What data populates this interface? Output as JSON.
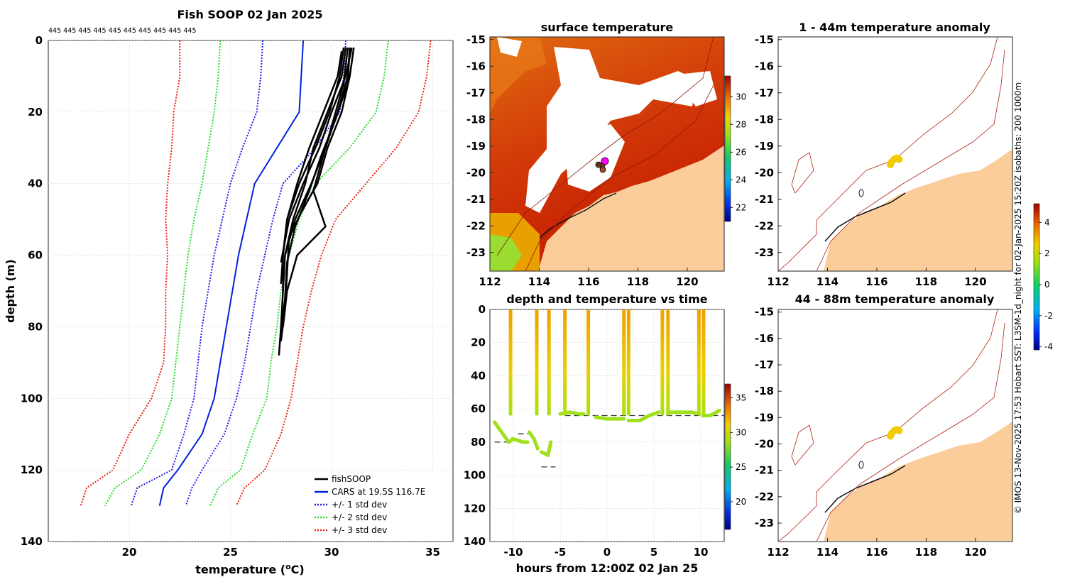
{
  "chart_data": [
    {
      "type": "line",
      "title": "Fish SOOP 02 Jan 2025",
      "top_label": "445 445 445 445 445 445 445 445 445 445",
      "xlabel": "temperature (",
      "xlabel_sup": "o",
      "xlabel_end": "C)",
      "ylabel": "depth (m)",
      "xlim": [
        16,
        36
      ],
      "ylim": [
        140,
        0
      ],
      "xticks": [
        "20",
        "25",
        "30",
        "35"
      ],
      "yticks": [
        "0",
        "20",
        "40",
        "60",
        "80",
        "100",
        "120",
        "140"
      ],
      "legend": [
        "fishSOOP",
        "CARS at 19.5S 116.7E",
        "+/- 1 std dev",
        "+/- 2 std dev",
        "+/- 3 std dev"
      ],
      "colors": {
        "fish": "#000000",
        "cars": "#0022dd",
        "std1": "#1a1aee",
        "std2": "#22dd22",
        "std3": "#ee2211"
      },
      "cars_mean": {
        "depth": [
          0,
          10,
          20,
          30,
          40,
          50,
          60,
          70,
          80,
          90,
          100,
          110,
          120,
          125,
          130
        ],
        "temp": [
          28.6,
          28.5,
          28.4,
          27.3,
          26.2,
          25.8,
          25.4,
          25.1,
          24.8,
          24.5,
          24.2,
          23.6,
          22.4,
          21.7,
          21.5
        ]
      },
      "std_devs": [
        {
          "name": "+/- 1 std dev",
          "color": "#1a1aee",
          "lower": [
            26.6,
            26.5,
            26.3,
            25.6,
            25.0,
            24.6,
            24.2,
            23.9,
            23.6,
            23.4,
            23.2,
            22.7,
            22.1,
            20.4,
            20.1
          ],
          "upper": [
            30.7,
            30.6,
            30.4,
            29.2,
            27.6,
            27.1,
            26.7,
            26.3,
            26.0,
            25.7,
            25.3,
            24.7,
            23.6,
            23.1,
            22.8
          ]
        },
        {
          "name": "+/- 2 std dev",
          "color": "#22dd22",
          "lower": [
            24.5,
            24.4,
            24.2,
            23.9,
            23.6,
            23.2,
            22.9,
            22.7,
            22.5,
            22.3,
            22.1,
            21.5,
            20.6,
            19.3,
            18.8
          ]
        },
        {
          "name": "+/- 3 std dev",
          "color": "#ee2211",
          "lower": [
            22.5,
            22.5,
            22.2,
            22.1,
            21.9,
            21.8,
            21.9,
            21.8,
            21.8,
            21.7,
            21.1,
            20.0,
            19.2,
            17.9,
            17.6
          ]
        }
      ],
      "std_upper_extra": {
        "std2": [
          32.8,
          32.6,
          32.2,
          30.9,
          29.2,
          28.4,
          27.9,
          27.5,
          27.3,
          27.0,
          26.8,
          26.1,
          25.5,
          24.4,
          24.0
        ],
        "std3": [
          34.9,
          34.7,
          34.3,
          33.2,
          31.7,
          30.2,
          29.5,
          29.0,
          28.6,
          28.3,
          28.0,
          27.5,
          26.7,
          25.7,
          25.3
        ]
      },
      "fish_profiles": [
        {
          "depth": [
            2,
            10,
            20,
            30,
            40,
            50,
            60,
            70,
            80,
            88
          ],
          "temp": [
            30.9,
            30.8,
            30.3,
            29.7,
            29.0,
            28.2,
            27.7,
            27.6,
            27.5,
            27.4
          ]
        },
        {
          "depth": [
            2,
            10,
            20,
            30,
            40,
            50,
            62
          ],
          "temp": [
            31.0,
            30.7,
            30.0,
            29.4,
            28.6,
            27.9,
            27.5
          ]
        },
        {
          "depth": [
            2,
            12,
            22,
            32,
            42,
            52,
            60,
            70,
            80
          ],
          "temp": [
            30.8,
            30.6,
            30.1,
            29.6,
            29.1,
            29.7,
            28.3,
            27.8,
            27.6
          ]
        },
        {
          "depth": [
            2,
            10,
            20,
            30,
            40,
            48,
            55,
            65,
            75,
            84
          ],
          "temp": [
            31.1,
            30.9,
            30.5,
            29.8,
            29.3,
            28.5,
            27.9,
            27.8,
            27.7,
            27.5
          ]
        },
        {
          "depth": [
            2,
            10,
            20,
            30,
            40,
            50,
            60,
            70
          ],
          "temp": [
            30.6,
            30.4,
            29.9,
            29.2,
            28.4,
            27.8,
            27.6,
            27.6
          ]
        },
        {
          "depth": [
            2,
            10,
            20,
            30,
            40,
            50,
            60
          ],
          "temp": [
            30.7,
            30.5,
            29.8,
            29.1,
            28.7,
            28.1,
            27.7
          ]
        },
        {
          "depth": [
            2,
            12,
            22,
            32,
            42,
            52,
            62,
            72,
            82
          ],
          "temp": [
            30.9,
            30.8,
            30.2,
            29.5,
            28.9,
            28.2,
            27.8,
            27.7,
            27.5
          ]
        },
        {
          "depth": [
            3,
            10,
            20,
            30,
            40,
            50,
            60,
            68
          ],
          "temp": [
            30.5,
            30.3,
            29.6,
            28.9,
            28.3,
            27.8,
            27.6,
            27.5
          ]
        }
      ]
    },
    {
      "type": "heatmap",
      "title": "surface temperature",
      "xlim": [
        112,
        121.5
      ],
      "ylim": [
        -23.7,
        -14.9
      ],
      "xticks": [
        "112",
        "114",
        "116",
        "118",
        "120"
      ],
      "yticks": [
        "-15",
        "-16",
        "-17",
        "-18",
        "-19",
        "-20",
        "-21",
        "-22",
        "-23"
      ],
      "colorbar": {
        "min": 21,
        "max": 31.5,
        "ticks": [
          "22",
          "24",
          "26",
          "28",
          "30"
        ]
      }
    },
    {
      "type": "scatter",
      "title": "depth and temperature vs time",
      "xlabel": "hours from 12:00Z 02 Jan 25",
      "xlim": [
        -12.5,
        12.5
      ],
      "ylim": [
        140,
        0
      ],
      "xticks": [
        "-10",
        "-5",
        "0",
        "5",
        "10"
      ],
      "yticks": [
        "0",
        "20",
        "40",
        "60",
        "80",
        "100",
        "120",
        "140"
      ],
      "colorbar": {
        "min": 16,
        "max": 37,
        "ticks": [
          "20",
          "25",
          "30",
          "35"
        ]
      },
      "segments": [
        {
          "x": [
            -12.0,
            -11.5,
            -11.0,
            -10.5,
            -10.2
          ],
          "depth": [
            68,
            72,
            76,
            80,
            79
          ]
        },
        {
          "x": [
            -10.1,
            -9.5,
            -9.0,
            -8.5
          ],
          "depth": [
            78,
            79,
            80,
            80
          ]
        },
        {
          "x": [
            -8.3,
            -7.8,
            -7.4
          ],
          "depth": [
            74,
            78,
            84
          ]
        },
        {
          "x": [
            -7.0,
            -6.6,
            -6.3,
            -6.0
          ],
          "depth": [
            86,
            87,
            88,
            80
          ]
        },
        {
          "x": [
            -5.0,
            -4.0,
            -3.0,
            -2.5
          ],
          "depth": [
            63,
            62,
            63,
            63
          ]
        },
        {
          "x": [
            -1.2,
            0.0,
            1.0,
            1.8
          ],
          "depth": [
            65,
            66,
            66,
            66
          ]
        },
        {
          "x": [
            2.3,
            3.5,
            4.5,
            5.5
          ],
          "depth": [
            67,
            67,
            64,
            62
          ]
        },
        {
          "x": [
            6.6,
            8.0,
            9.0,
            9.8
          ],
          "depth": [
            62,
            62,
            62,
            63
          ]
        },
        {
          "x": [
            10.2,
            11.0,
            12.0
          ],
          "depth": [
            64,
            64,
            61
          ]
        }
      ],
      "casts": [
        -10.3,
        -7.5,
        -6.2,
        -4.5,
        -2.0,
        1.8,
        2.3,
        5.9,
        6.5,
        9.8,
        10.3
      ],
      "bottom_dashes": [
        {
          "x": [
            -12.0,
            -10.5
          ],
          "depth": 80
        },
        {
          "x": [
            -9.5,
            -8.0
          ],
          "depth": 75
        },
        {
          "x": [
            -7.0,
            -5.5
          ],
          "depth": 95
        },
        {
          "x": [
            -4.5,
            12.5
          ],
          "depth": 64
        }
      ]
    },
    {
      "type": "scatter",
      "title": "1 - 44m temperature anomaly",
      "xlim": [
        112,
        121.5
      ],
      "ylim": [
        -23.7,
        -14.9
      ],
      "xticks": [
        "112",
        "114",
        "116",
        "118",
        "120"
      ],
      "yticks": [
        "-15",
        "-16",
        "-17",
        "-18",
        "-19",
        "-20",
        "-21",
        "-22",
        "-23"
      ],
      "points": [
        [
          116.6,
          -19.6
        ],
        [
          116.7,
          -19.5
        ],
        [
          116.8,
          -19.45
        ],
        [
          116.9,
          -19.5
        ],
        [
          116.55,
          -19.7
        ]
      ]
    },
    {
      "type": "scatter",
      "title": "44 - 88m temperature anomaly",
      "xlim": [
        112,
        121.5
      ],
      "ylim": [
        -23.7,
        -14.9
      ],
      "xticks": [
        "112",
        "114",
        "116",
        "118",
        "120"
      ],
      "yticks": [
        "-15",
        "-16",
        "-17",
        "-18",
        "-19",
        "-20",
        "-21",
        "-22",
        "-23"
      ],
      "points": [
        [
          116.6,
          -19.6
        ],
        [
          116.7,
          -19.5
        ],
        [
          116.8,
          -19.45
        ],
        [
          116.9,
          -19.5
        ],
        [
          116.55,
          -19.7
        ]
      ]
    }
  ],
  "anomaly_colorbar": {
    "min": -4.2,
    "max": 5.2,
    "ticks": [
      "4",
      "2",
      "0",
      "-2",
      "-4"
    ]
  },
  "side_credit": "© IMOS 13-Nov-2025 17:53 Hobart SST: L3SM-1d_night for 02-Jan-2025 15:20Z isobaths: 200  1000m"
}
